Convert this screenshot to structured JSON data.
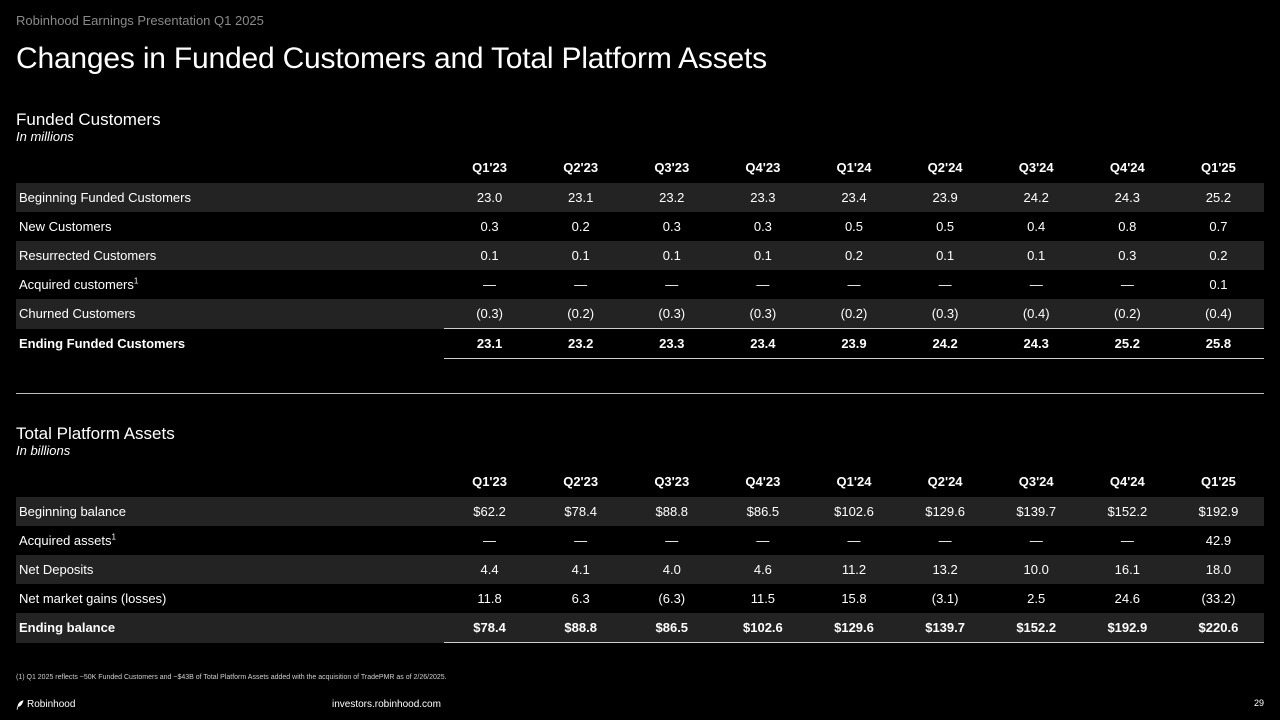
{
  "header": {
    "eyebrow": "Robinhood Earnings Presentation Q1 2025",
    "title": "Changes in Funded Customers and Total Platform Assets"
  },
  "customers": {
    "title": "Funded Customers",
    "unit": "In millions",
    "columns": [
      "Q1'23",
      "Q2'23",
      "Q3'23",
      "Q4'23",
      "Q1'24",
      "Q2'24",
      "Q3'24",
      "Q4'24",
      "Q1'25"
    ],
    "rows": [
      {
        "label": "Beginning Funded Customers",
        "values": [
          "23.0",
          "23.1",
          "23.2",
          "23.3",
          "23.4",
          "23.9",
          "24.2",
          "24.3",
          "25.2"
        ]
      },
      {
        "label": "New Customers",
        "values": [
          "0.3",
          "0.2",
          "0.3",
          "0.3",
          "0.5",
          "0.5",
          "0.4",
          "0.8",
          "0.7"
        ]
      },
      {
        "label": "Resurrected Customers",
        "values": [
          "0.1",
          "0.1",
          "0.1",
          "0.1",
          "0.2",
          "0.1",
          "0.1",
          "0.3",
          "0.2"
        ]
      },
      {
        "label": "Acquired customers",
        "footnote_mark": "1",
        "values": [
          "—",
          "—",
          "—",
          "—",
          "—",
          "—",
          "—",
          "—",
          "0.1"
        ]
      },
      {
        "label": "Churned Customers",
        "values": [
          "(0.3)",
          "(0.2)",
          "(0.3)",
          "(0.3)",
          "(0.2)",
          "(0.3)",
          "(0.4)",
          "(0.2)",
          "(0.4)"
        ]
      },
      {
        "label": "Ending Funded Customers",
        "values": [
          "23.1",
          "23.2",
          "23.3",
          "23.4",
          "23.9",
          "24.2",
          "24.3",
          "25.2",
          "25.8"
        ]
      }
    ]
  },
  "assets": {
    "title": "Total Platform Assets",
    "unit": "In billions",
    "columns": [
      "Q1'23",
      "Q2'23",
      "Q3'23",
      "Q4'23",
      "Q1'24",
      "Q2'24",
      "Q3'24",
      "Q4'24",
      "Q1'25"
    ],
    "rows": [
      {
        "label": "Beginning balance",
        "values": [
          "$62.2",
          "$78.4",
          "$88.8",
          "$86.5",
          "$102.6",
          "$129.6",
          "$139.7",
          "$152.2",
          "$192.9"
        ]
      },
      {
        "label": "Acquired assets",
        "footnote_mark": "1",
        "values": [
          "—",
          "—",
          "—",
          "—",
          "—",
          "—",
          "—",
          "—",
          "42.9"
        ]
      },
      {
        "label": "Net Deposits",
        "values": [
          "4.4",
          "4.1",
          "4.0",
          "4.6",
          "11.2",
          "13.2",
          "10.0",
          "16.1",
          "18.0"
        ]
      },
      {
        "label": "Net market gains (losses)",
        "values": [
          "11.8",
          "6.3",
          "(6.3)",
          "11.5",
          "15.8",
          "(3.1)",
          "2.5",
          "24.6",
          "(33.2)"
        ]
      },
      {
        "label": "Ending balance",
        "values": [
          "$78.4",
          "$88.8",
          "$86.5",
          "$102.6",
          "$129.6",
          "$139.7",
          "$152.2",
          "$192.9",
          "$220.6"
        ]
      }
    ]
  },
  "footer": {
    "footnote": "(1) Q1 2025 reflects ~50K Funded Customers and ~$43B of Total Platform Assets added with the acquisition of TradePMR as of 2/26/2025.",
    "brand": "Robinhood",
    "brand_icon": "feather-logo-icon",
    "website": "investors.robinhood.com",
    "page_number": "29"
  }
}
